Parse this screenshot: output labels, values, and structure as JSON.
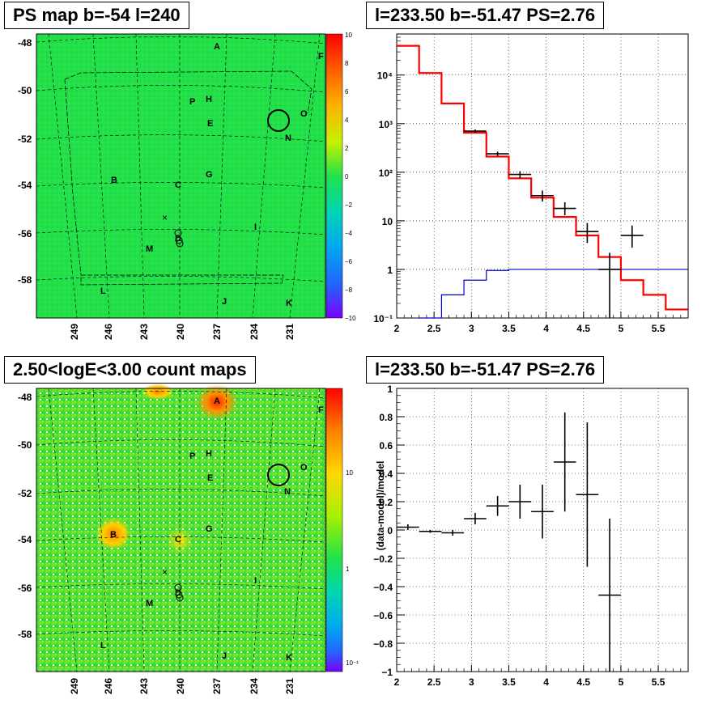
{
  "panels": {
    "tl_title": "PS map b=-54 l=240",
    "tr_title": "l=233.50 b=-51.47 PS=2.76",
    "bl_title": "2.50<logE<3.00 count maps",
    "br_title": "l=233.50 b=-51.47 PS=2.76"
  },
  "colors": {
    "map_green": "#22e24a",
    "model_red": "#ff0000",
    "bkg_blue": "#0000cc",
    "data_black": "#000000"
  },
  "maps": {
    "lat_ticks": [
      "-48",
      "-50",
      "-52",
      "-54",
      "-56",
      "-58"
    ],
    "lon_ticks": [
      "249",
      "246",
      "243",
      "240",
      "237",
      "234",
      "231"
    ],
    "source_labels": [
      {
        "id": "A"
      },
      {
        "id": "F"
      },
      {
        "id": "O"
      },
      {
        "id": "P"
      },
      {
        "id": "H"
      },
      {
        "id": "E"
      },
      {
        "id": "N"
      },
      {
        "id": "B"
      },
      {
        "id": "C"
      },
      {
        "id": "G"
      },
      {
        "id": "D"
      },
      {
        "id": "I"
      },
      {
        "id": "M"
      },
      {
        "id": "L"
      },
      {
        "id": "J"
      },
      {
        "id": "K"
      }
    ],
    "ps_colorbar_ticks": [
      "10",
      "8",
      "6",
      "4",
      "2",
      "0",
      "−2",
      "−4",
      "−6",
      "−8",
      "−10"
    ],
    "count_colorbar_ticks": [
      "10",
      "1",
      "10⁻¹"
    ]
  },
  "chart_data": [
    {
      "type": "line",
      "title": "l=233.50 b=-51.47 PS=2.76",
      "xlabel": "",
      "ylabel": "",
      "xlim": [
        2,
        5.9
      ],
      "ylim": [
        0.1,
        70000
      ],
      "yscale": "log",
      "grid": true,
      "x_ticks": [
        "2",
        "2.5",
        "3",
        "3.5",
        "4",
        "4.5",
        "5",
        "5.5"
      ],
      "y_ticks": [
        "10⁻¹",
        "1",
        "10",
        "10²",
        "10³",
        "10⁴"
      ],
      "series": [
        {
          "style": "step",
          "color": "#ff0000",
          "edges": [
            2,
            2.3,
            2.6,
            2.9,
            3.2,
            3.5,
            3.8,
            4.1,
            4.4,
            4.7,
            5.0,
            5.3,
            5.6,
            5.9
          ],
          "values": [
            40000,
            11000,
            2600,
            650,
            210,
            75,
            30,
            12,
            5,
            1.8,
            0.6,
            0.3,
            0.15
          ]
        },
        {
          "style": "step",
          "color": "#0000cc",
          "edges": [
            2.3,
            2.6,
            2.9,
            3.2,
            3.5,
            3.8,
            4.1,
            4.4,
            4.7,
            5.0,
            5.3,
            5.6,
            5.9
          ],
          "values": [
            0.1,
            0.3,
            0.6,
            0.95,
            1,
            1,
            1,
            1,
            1,
            1,
            1,
            1,
            1
          ]
        },
        {
          "style": "errorbar",
          "color": "#000000",
          "points": [
            {
              "x": 3.05,
              "y": 700,
              "xerr": 0.15,
              "ylo": 650,
              "yhi": 760
            },
            {
              "x": 3.35,
              "y": 240,
              "xerr": 0.15,
              "ylo": 215,
              "yhi": 265
            },
            {
              "x": 3.65,
              "y": 90,
              "xerr": 0.15,
              "ylo": 75,
              "yhi": 105
            },
            {
              "x": 3.95,
              "y": 33,
              "xerr": 0.15,
              "ylo": 25,
              "yhi": 42
            },
            {
              "x": 4.25,
              "y": 18,
              "xerr": 0.15,
              "ylo": 13,
              "yhi": 24
            },
            {
              "x": 4.55,
              "y": 6,
              "xerr": 0.15,
              "ylo": 3.5,
              "yhi": 9
            },
            {
              "x": 4.85,
              "y": 1,
              "xerr": 0.15,
              "ylo": 0.1,
              "yhi": 2.2
            },
            {
              "x": 5.15,
              "y": 5,
              "xerr": 0.15,
              "ylo": 2.8,
              "yhi": 8
            }
          ]
        }
      ]
    },
    {
      "type": "scatter",
      "title": "l=233.50 b=-51.47 PS=2.76",
      "xlabel": "",
      "ylabel": "(data-model)/model",
      "xlim": [
        2,
        5.9
      ],
      "ylim": [
        -1,
        1
      ],
      "grid": true,
      "x_ticks": [
        "2",
        "2.5",
        "3",
        "3.5",
        "4",
        "4.5",
        "5",
        "5.5"
      ],
      "y_ticks": [
        "−1",
        "−0.8",
        "−0.6",
        "−0.4",
        "−0.2",
        "0",
        "0.2",
        "0.4",
        "0.6",
        "0.8",
        "1"
      ],
      "series": [
        {
          "style": "errorbar",
          "color": "#000000",
          "points": [
            {
              "x": 2.15,
              "y": 0.02,
              "xerr": 0.15,
              "ylo": 0.0,
              "yhi": 0.04
            },
            {
              "x": 2.45,
              "y": -0.01,
              "xerr": 0.15,
              "ylo": -0.02,
              "yhi": 0.0
            },
            {
              "x": 2.75,
              "y": -0.02,
              "xerr": 0.15,
              "ylo": -0.04,
              "yhi": 0.0
            },
            {
              "x": 3.05,
              "y": 0.08,
              "xerr": 0.15,
              "ylo": 0.04,
              "yhi": 0.12
            },
            {
              "x": 3.35,
              "y": 0.17,
              "xerr": 0.15,
              "ylo": 0.1,
              "yhi": 0.24
            },
            {
              "x": 3.65,
              "y": 0.2,
              "xerr": 0.15,
              "ylo": 0.08,
              "yhi": 0.32
            },
            {
              "x": 3.95,
              "y": 0.13,
              "xerr": 0.15,
              "ylo": -0.06,
              "yhi": 0.32
            },
            {
              "x": 4.25,
              "y": 0.48,
              "xerr": 0.15,
              "ylo": 0.13,
              "yhi": 0.83
            },
            {
              "x": 4.55,
              "y": 0.25,
              "xerr": 0.15,
              "ylo": -0.26,
              "yhi": 0.76
            },
            {
              "x": 4.85,
              "y": -0.46,
              "xerr": 0.15,
              "ylo": -1.0,
              "yhi": 0.08
            }
          ]
        }
      ]
    }
  ]
}
